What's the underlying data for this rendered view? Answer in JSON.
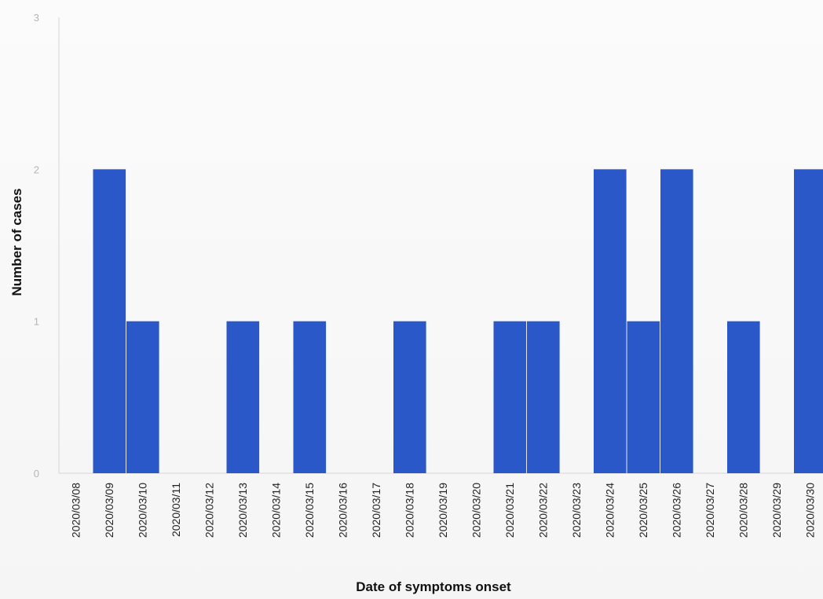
{
  "chart_data": {
    "type": "bar",
    "title": "",
    "xlabel": "Date of symptoms onset",
    "ylabel": "Number of cases",
    "ylim": [
      0,
      3
    ],
    "yticks": [
      0,
      1,
      2,
      3
    ],
    "grid": false,
    "legend": "none",
    "bar_color": "#2a58c8",
    "categories": [
      "2020/03/08",
      "2020/03/09",
      "2020/03/10",
      "2020/03/11",
      "2020/03/12",
      "2020/03/13",
      "2020/03/14",
      "2020/03/15",
      "2020/03/16",
      "2020/03/17",
      "2020/03/18",
      "2020/03/19",
      "2020/03/20",
      "2020/03/21",
      "2020/03/22",
      "2020/03/23",
      "2020/03/24",
      "2020/03/25",
      "2020/03/26",
      "2020/03/27",
      "2020/03/28",
      "2020/03/29",
      "2020/03/30"
    ],
    "values": [
      0,
      2,
      1,
      0,
      0,
      1,
      0,
      1,
      0,
      0,
      1,
      0,
      0,
      1,
      1,
      0,
      2,
      1,
      2,
      0,
      1,
      0,
      2
    ]
  }
}
